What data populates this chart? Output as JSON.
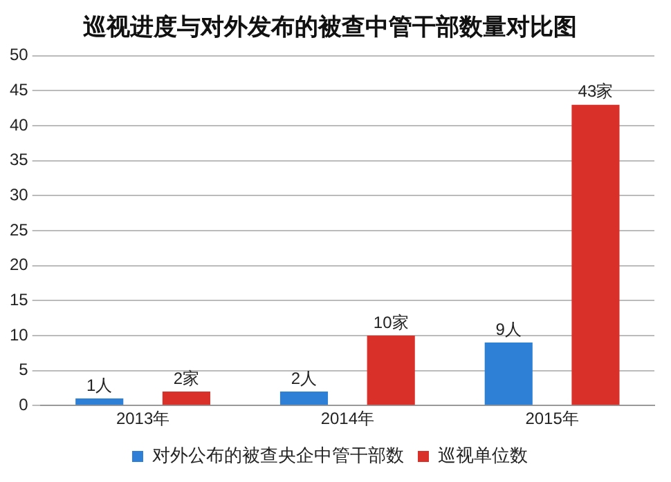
{
  "chart_data": {
    "type": "bar",
    "title": "巡视进度与对外发布的被查中管干部数量对比图",
    "categories": [
      "2013年",
      "2014年",
      "2015年"
    ],
    "series": [
      {
        "name": "对外公布的被查央企中管干部数",
        "color": "#2e7fd6",
        "values": [
          1,
          2,
          9
        ],
        "value_labels": [
          "1人",
          "2人",
          "9人"
        ]
      },
      {
        "name": "巡视单位数",
        "color": "#d9302a",
        "values": [
          2,
          10,
          43
        ],
        "value_labels": [
          "2家",
          "10家",
          "43家"
        ]
      }
    ],
    "ylim": [
      0,
      50
    ],
    "yticks": [
      0,
      5,
      10,
      15,
      20,
      25,
      30,
      35,
      40,
      45,
      50
    ],
    "grid": "y",
    "legend": "bottom"
  }
}
